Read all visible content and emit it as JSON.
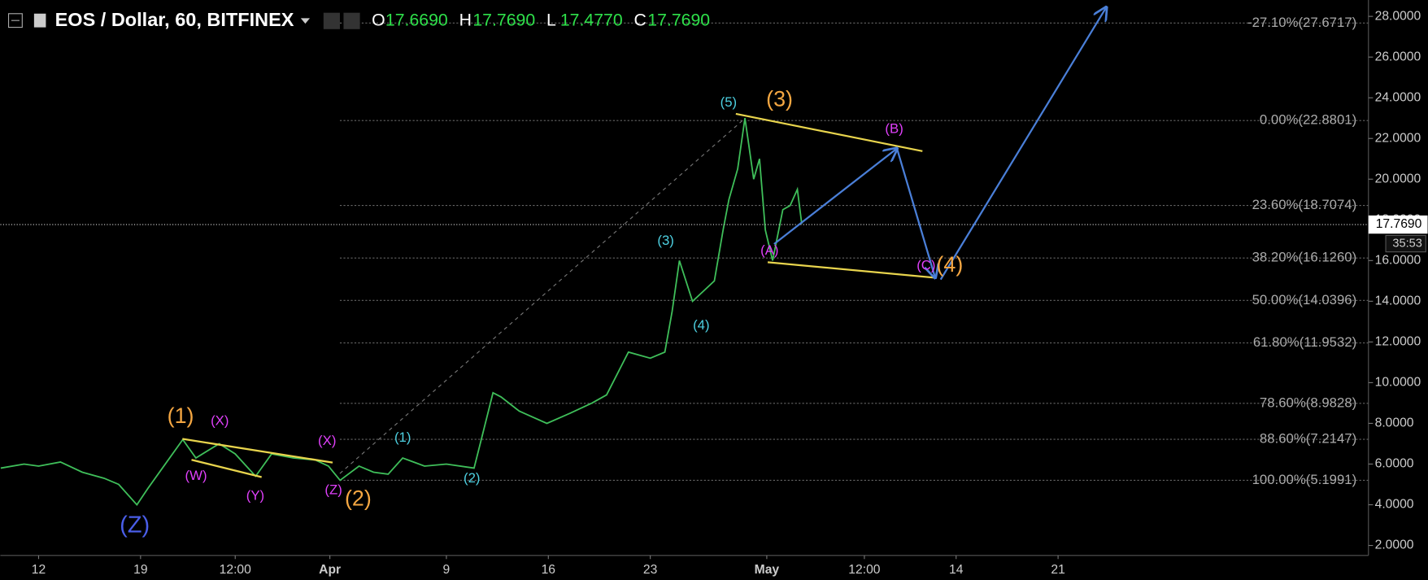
{
  "header": {
    "symbol": "EOS / Dollar, 60, BITFINEX",
    "ohlc": [
      {
        "key": "O",
        "value": "17.6690"
      },
      {
        "key": "H",
        "value": "17.7690"
      },
      {
        "key": "L",
        "value": "17.4770"
      },
      {
        "key": "C",
        "value": "17.7690"
      }
    ]
  },
  "countdown": "35:53",
  "chart_data": {
    "type": "line",
    "color": "#3fbf5a",
    "x": [
      -2.6,
      -1,
      0,
      1.5,
      3,
      4.5,
      5.5,
      6.75,
      7.5,
      8.5,
      9.9,
      10.8,
      12.4,
      13.5,
      14.9,
      16,
      17.5,
      19,
      19.9,
      20.7,
      22,
      23,
      24,
      25,
      26.5,
      28,
      29.9,
      30.5,
      31.2,
      31.75,
      33,
      34.9,
      36.5,
      38,
      39,
      40.5,
      42,
      43,
      43.5,
      44,
      44.9,
      45.8,
      46.4,
      47,
      47.4,
      48,
      48.5,
      49.1,
      49.5,
      49.9,
      50.4,
      51.1,
      51.6,
      52.1,
      52.4
    ],
    "values": [
      5.8,
      6.0,
      5.9,
      6.1,
      5.6,
      5.3,
      5.0,
      4.0,
      4.8,
      5.8,
      7.2,
      6.3,
      7.0,
      6.5,
      5.4,
      6.5,
      6.3,
      6.2,
      5.9,
      5.2,
      5.9,
      5.6,
      5.5,
      6.3,
      5.9,
      6.0,
      5.8,
      7.5,
      9.5,
      9.3,
      8.6,
      8.0,
      8.5,
      9.0,
      9.4,
      11.5,
      11.2,
      11.5,
      13.5,
      16.0,
      14.0,
      14.6,
      15.0,
      17.5,
      19.0,
      20.5,
      23.0,
      20.0,
      21.0,
      17.5,
      16.0,
      18.5,
      18.7,
      19.5,
      17.8
    ],
    "xlim": [
      -2.625,
      91.3125
    ],
    "ylim": [
      1.51,
      28.805
    ],
    "xticks": [
      {
        "value": 0,
        "label": "12"
      },
      {
        "value": 7,
        "label": "19"
      },
      {
        "value": 13.5,
        "label": "12:00"
      },
      {
        "value": 20,
        "label": "Apr"
      },
      {
        "value": 28,
        "label": "9"
      },
      {
        "value": 35,
        "label": "16"
      },
      {
        "value": 42,
        "label": "23"
      },
      {
        "value": 50,
        "label": "May"
      },
      {
        "value": 56.7,
        "label": "12:00"
      },
      {
        "value": 63,
        "label": "14"
      },
      {
        "value": 70,
        "label": "21"
      }
    ],
    "yticks": [
      {
        "value": 2,
        "label": "2.0000"
      },
      {
        "value": 4,
        "label": "4.0000"
      },
      {
        "value": 6,
        "label": "6.0000"
      },
      {
        "value": 8,
        "label": "8.0000"
      },
      {
        "value": 10,
        "label": "10.0000"
      },
      {
        "value": 12,
        "label": "12.0000"
      },
      {
        "value": 14,
        "label": "14.0000"
      },
      {
        "value": 16,
        "label": "16.0000"
      },
      {
        "value": 18,
        "label": "18.0000"
      },
      {
        "value": 20,
        "label": "20.0000"
      },
      {
        "value": 22,
        "label": "22.0000"
      },
      {
        "value": 24,
        "label": "24.0000"
      },
      {
        "value": 26,
        "label": "26.0000"
      },
      {
        "value": 28,
        "label": "28.0000"
      }
    ],
    "last_price": {
      "value": 17.769,
      "label": "17.7690"
    },
    "fib_levels": [
      {
        "value": 27.6717,
        "label": "-27.10%(27.6717)"
      },
      {
        "value": 22.8801,
        "label": "0.00%(22.8801)"
      },
      {
        "value": 18.7074,
        "label": "23.60%(18.7074)"
      },
      {
        "value": 16.126,
        "label": "38.20%(16.1260)"
      },
      {
        "value": 14.0396,
        "label": "50.00%(14.0396)"
      },
      {
        "value": 11.9532,
        "label": "61.80%(11.9532)"
      },
      {
        "value": 8.9828,
        "label": "78.60%(8.9828)"
      },
      {
        "value": 7.2147,
        "label": "88.60%(7.2147)"
      },
      {
        "value": 5.1991,
        "label": "100.00%(5.1991)"
      }
    ],
    "annotations": [
      {
        "text": "(Z)",
        "x": 6.6,
        "y": 2.94,
        "color": "#4a5ee8",
        "size": 26
      },
      {
        "text": "(1)",
        "x": 9.75,
        "y": 8.31,
        "color": "#f5a742",
        "size": 24
      },
      {
        "text": "(X)",
        "x": 12.44,
        "y": 8.09,
        "color": "#e040fb",
        "size": 15
      },
      {
        "text": "(W)",
        "x": 10.81,
        "y": 5.4,
        "color": "#e040fb",
        "size": 15
      },
      {
        "text": "(Y)",
        "x": 14.88,
        "y": 4.42,
        "color": "#e040fb",
        "size": 15
      },
      {
        "text": "(X)",
        "x": 19.81,
        "y": 7.11,
        "color": "#e040fb",
        "size": 15
      },
      {
        "text": "(Z)",
        "x": 20.25,
        "y": 4.69,
        "color": "#e040fb",
        "size": 15
      },
      {
        "text": "(2)",
        "x": 21.94,
        "y": 4.24,
        "color": "#f5a742",
        "size": 24
      },
      {
        "text": "(1)",
        "x": 25,
        "y": 7.28,
        "color": "#4dd0e1",
        "size": 15
      },
      {
        "text": "(2)",
        "x": 29.75,
        "y": 5.27,
        "color": "#4dd0e1",
        "size": 15
      },
      {
        "text": "(3)",
        "x": 43.06,
        "y": 16.95,
        "color": "#4dd0e1",
        "size": 15
      },
      {
        "text": "(4)",
        "x": 45.5,
        "y": 12.79,
        "color": "#4dd0e1",
        "size": 15
      },
      {
        "text": "(5)",
        "x": 47.375,
        "y": 23.75,
        "color": "#4dd0e1",
        "size": 15
      },
      {
        "text": "(3)",
        "x": 50.875,
        "y": 23.88,
        "color": "#f5a742",
        "size": 24
      },
      {
        "text": "(B)",
        "x": 58.75,
        "y": 22.45,
        "color": "#e040fb",
        "size": 15
      },
      {
        "text": "(A)",
        "x": 50.19,
        "y": 16.46,
        "color": "#e040fb",
        "size": 15
      },
      {
        "text": "(C)",
        "x": 60.94,
        "y": 15.74,
        "color": "#e040fb",
        "size": 15
      },
      {
        "text": "(4)",
        "x": 62.56,
        "y": 15.74,
        "color": "#f5a742",
        "size": 24
      }
    ]
  }
}
